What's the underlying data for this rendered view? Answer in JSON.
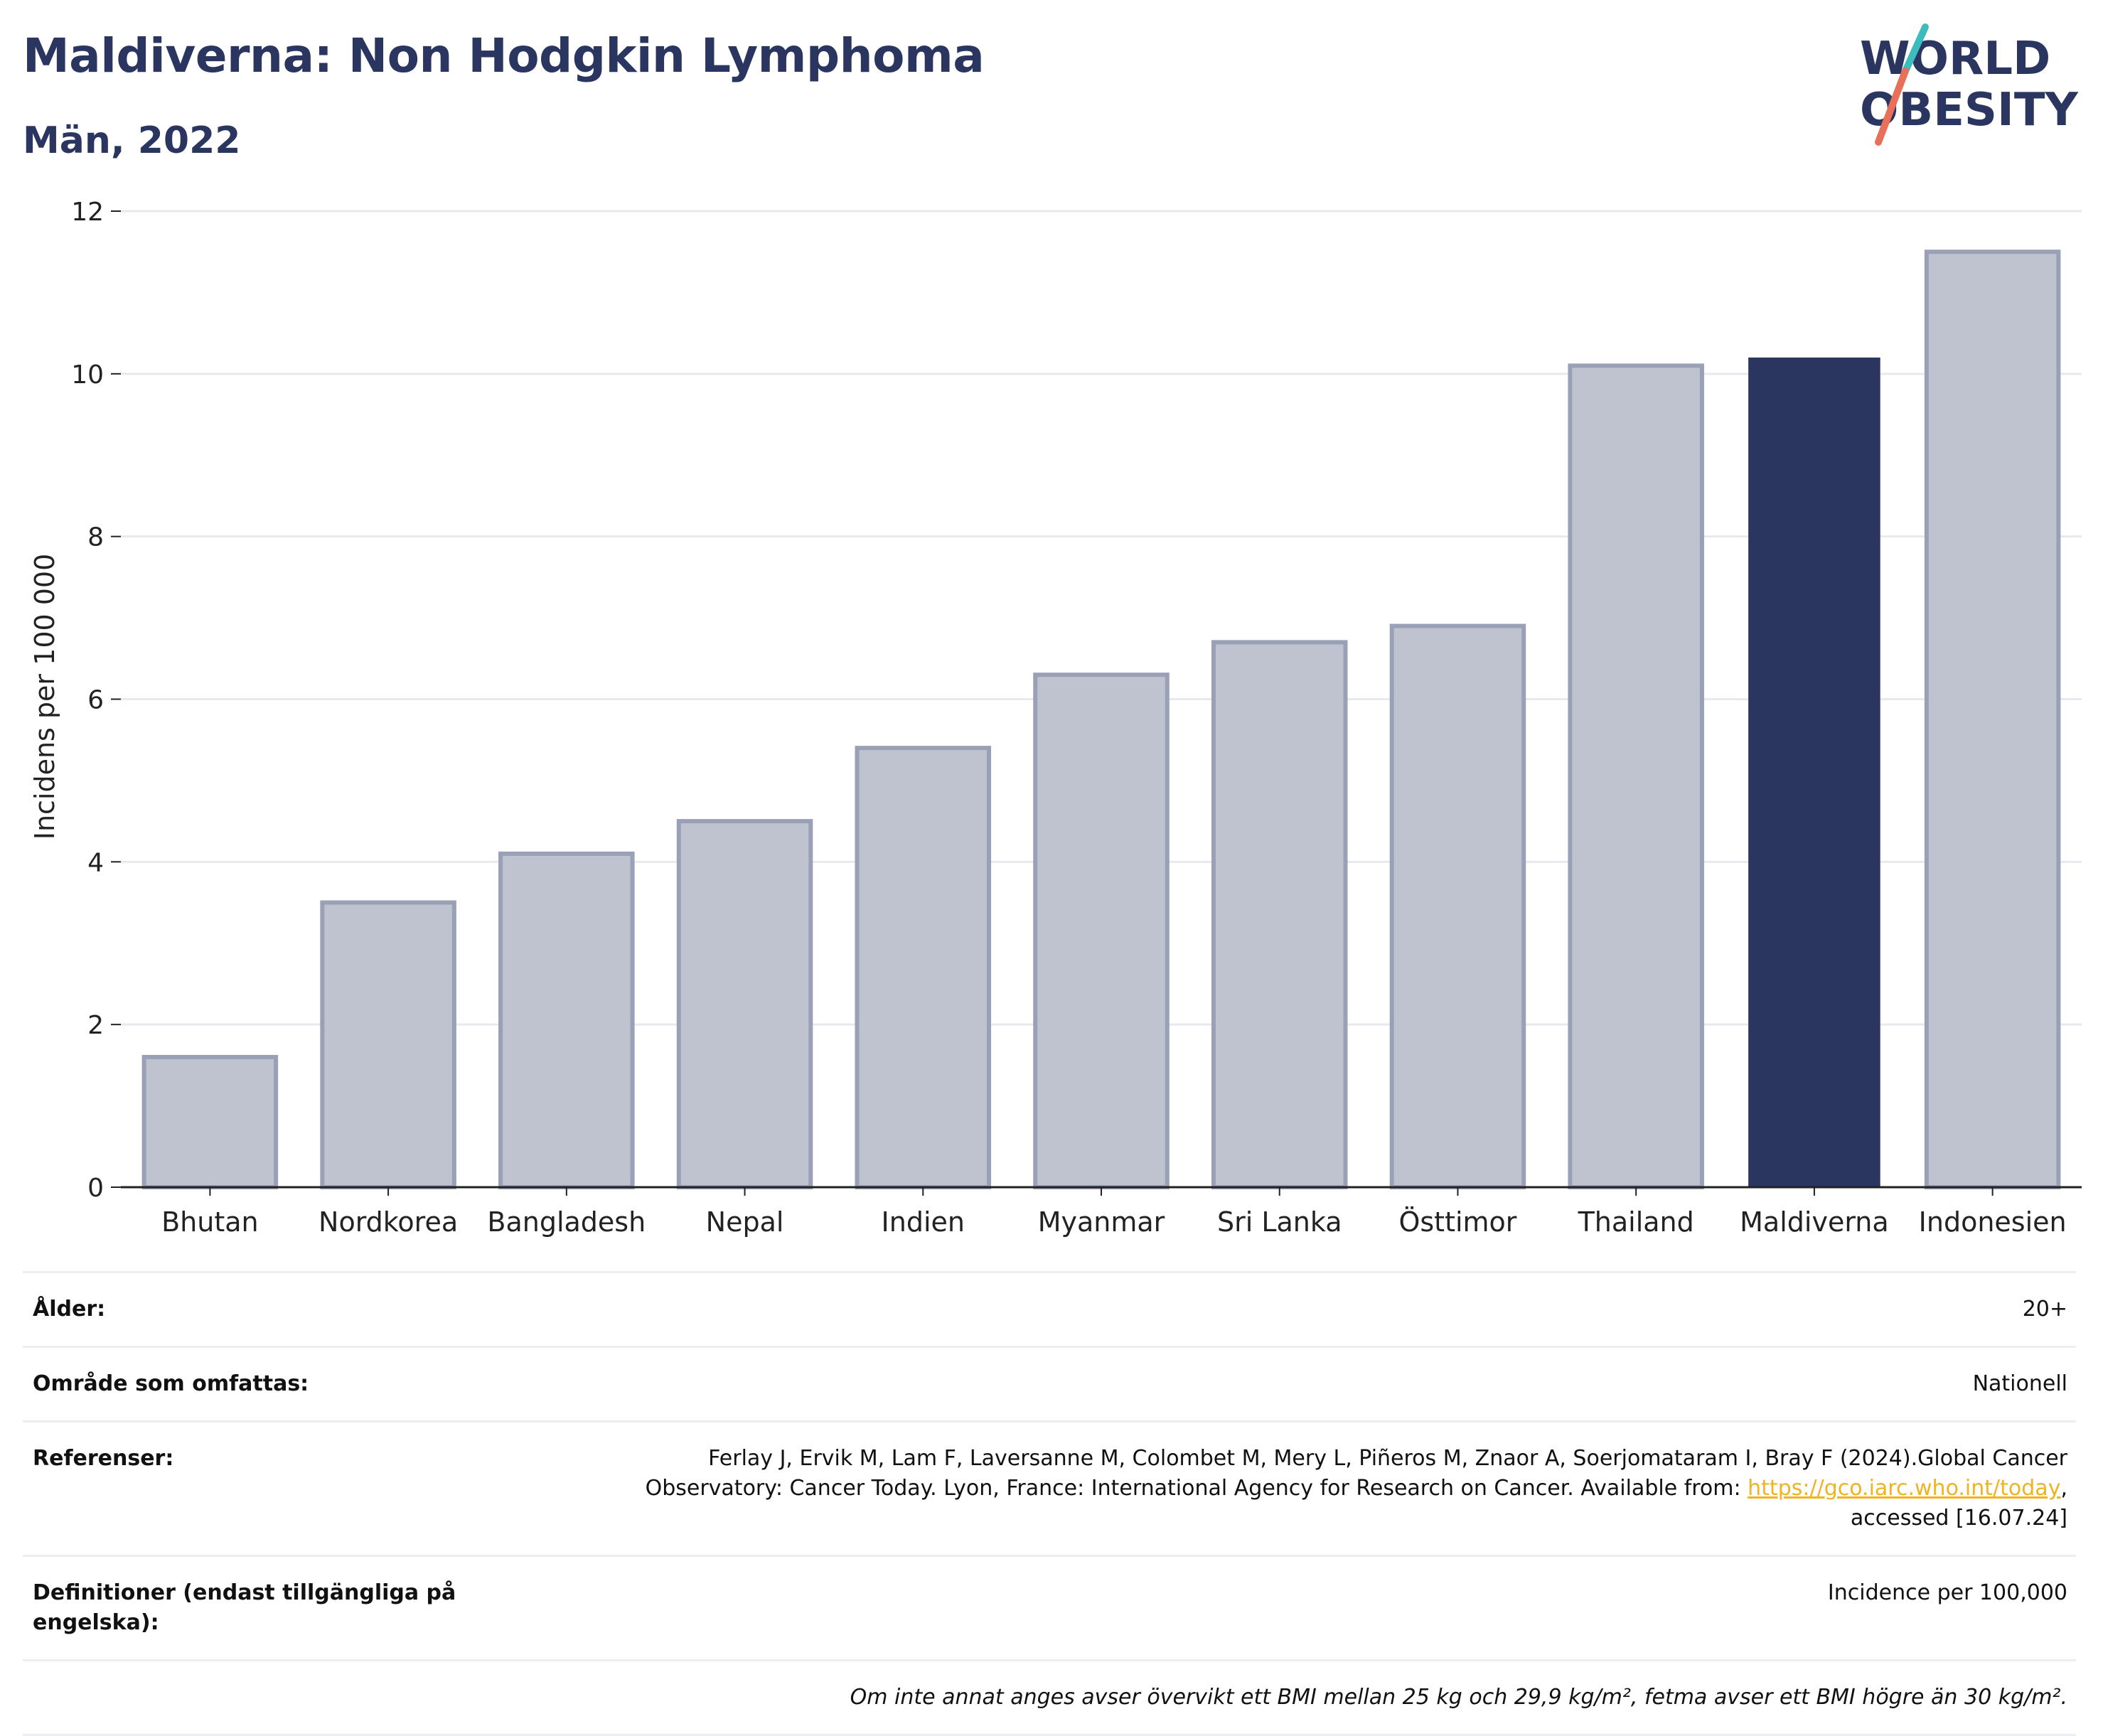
{
  "header": {
    "title": "Maldiverna: Non Hodgkin Lymphoma",
    "subtitle": "Män, 2022"
  },
  "logo": {
    "text_line1": "WORLD",
    "text_line2": "OBESITY",
    "colors": {
      "text": "#2a3660",
      "slash_top": "#3cbcbc",
      "slash_bottom": "#e8705a"
    }
  },
  "colors": {
    "bar": "#bfc3d0",
    "bar_outline": "#9aa0b6",
    "highlight": "#2a3660",
    "grid": "#e8e9ee",
    "axis": "#222222",
    "text": "#2a3660",
    "link": "#f0b322"
  },
  "chart_data": {
    "type": "bar",
    "title": "Maldiverna: Non Hodgkin Lymphoma",
    "subtitle": "Män, 2022",
    "xlabel": "",
    "ylabel": "Incidens per 100 000",
    "categories": [
      "Bhutan",
      "Nordkorea",
      "Bangladesh",
      "Nepal",
      "Indien",
      "Myanmar",
      "Sri Lanka",
      "Östtimor",
      "Thailand",
      "Maldiverna",
      "Indonesien"
    ],
    "values": [
      1.6,
      3.5,
      4.1,
      4.5,
      5.4,
      6.3,
      6.7,
      6.9,
      10.1,
      10.2,
      11.5
    ],
    "highlight": "Maldiverna",
    "ylim": [
      0,
      12
    ],
    "yticks": [
      0,
      2,
      4,
      6,
      8,
      10,
      12
    ],
    "grid": true,
    "legend": "none"
  },
  "meta": {
    "rows": [
      {
        "label": "Ålder:",
        "value": "20+"
      },
      {
        "label": "Område som omfattas:",
        "value": "Nationell"
      },
      {
        "label": "Referenser:",
        "value_line1": "Ferlay J, Ervik M, Lam F, Laversanne M, Colombet M, Mery L, Piñeros M, Znaor A, Soerjomataram I, Bray F (2024).Global Cancer",
        "value_line2_pre": "Observatory: Cancer Today. Lyon, France: International Agency for Research on Cancer. Available from: ",
        "link": "https://gco.iarc.who.int/today",
        "value_line2_post": ",",
        "value_line3": "accessed [16.07.24]"
      },
      {
        "label": "Definitioner (endast tillgängliga på engelska):",
        "value": "Incidence per 100,000"
      }
    ],
    "note": "Om inte annat anges avser övervikt ett BMI mellan 25 kg och 29,9 kg/m², fetma avser ett BMI högre än 30 kg/m²."
  }
}
